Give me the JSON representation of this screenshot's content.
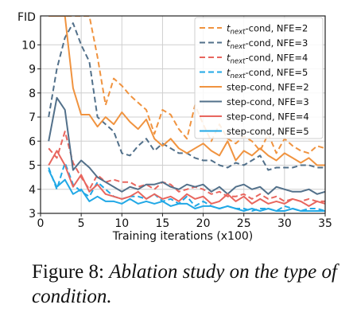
{
  "caption": {
    "label": "Figure 8:",
    "text": "Ablation study on the type of condition."
  },
  "chart_data": {
    "type": "line",
    "ylabel": "FID",
    "xlabel": "Training iterations (x100)",
    "xlim": [
      0,
      35
    ],
    "ylim": [
      3,
      11.2
    ],
    "x_ticks": [
      0,
      5,
      10,
      15,
      20,
      25,
      30,
      35
    ],
    "y_ticks": [
      3,
      4,
      5,
      6,
      7,
      8,
      9,
      10
    ],
    "grid": true,
    "legend_position": "top-right",
    "x": [
      1,
      2,
      3,
      4,
      5,
      6,
      7,
      8,
      9,
      10,
      11,
      12,
      13,
      14,
      15,
      16,
      17,
      18,
      19,
      20,
      21,
      22,
      23,
      24,
      25,
      26,
      27,
      28,
      29,
      30,
      31,
      32,
      33,
      34,
      35
    ],
    "series": [
      {
        "name": "t_next-cond, NFE=2",
        "legend_main": "t",
        "legend_sub": "next",
        "legend_rest": "-cond, NFE=2",
        "color": "#f0933f",
        "dash": true,
        "values": [
          11.2,
          11.2,
          11.2,
          11.2,
          11.2,
          11.2,
          9.5,
          7.5,
          8.6,
          8.3,
          7.9,
          7.6,
          7.3,
          6.3,
          7.3,
          7.1,
          6.5,
          6.1,
          7.5,
          6.7,
          6.0,
          6.7,
          6.1,
          5.9,
          6.2,
          6.0,
          5.6,
          6.3,
          5.5,
          6.1,
          5.8,
          5.6,
          5.5,
          5.8,
          5.7
        ]
      },
      {
        "name": "t_next-cond, NFE=3",
        "legend_main": "t",
        "legend_sub": "next",
        "legend_rest": "-cond, NFE=3",
        "color": "#52708a",
        "dash": true,
        "values": [
          7.0,
          9.0,
          10.3,
          10.9,
          10.0,
          9.3,
          7.0,
          6.7,
          6.4,
          5.5,
          5.4,
          5.8,
          6.1,
          5.6,
          5.9,
          5.7,
          5.5,
          5.5,
          5.3,
          5.2,
          5.2,
          5.0,
          4.9,
          5.1,
          5.0,
          5.2,
          5.4,
          4.8,
          4.9,
          4.9,
          4.9,
          5.0,
          5.0,
          4.9,
          4.9
        ]
      },
      {
        "name": "t_next-cond, NFE=4",
        "legend_main": "t",
        "legend_sub": "next",
        "legend_rest": "-cond, NFE=4",
        "color": "#e8665e",
        "dash": true,
        "values": [
          5.7,
          5.3,
          6.4,
          5.1,
          4.5,
          4.0,
          4.6,
          4.3,
          4.4,
          4.3,
          4.3,
          4.1,
          4.2,
          4.0,
          4.3,
          4.2,
          3.9,
          4.0,
          4.1,
          4.0,
          3.8,
          3.9,
          3.7,
          3.7,
          3.8,
          3.6,
          3.8,
          3.6,
          3.7,
          3.5,
          3.6,
          3.5,
          3.6,
          3.5,
          3.5
        ]
      },
      {
        "name": "t_next-cond, NFE=5",
        "legend_main": "t",
        "legend_sub": "next",
        "legend_rest": "-cond, NFE=5",
        "color": "#21a8e6",
        "dash": true,
        "values": [
          4.9,
          4.0,
          5.1,
          4.2,
          3.9,
          3.7,
          4.3,
          4.0,
          3.7,
          3.6,
          3.7,
          3.7,
          3.6,
          3.8,
          3.5,
          3.6,
          3.4,
          3.7,
          3.3,
          3.5,
          3.3,
          3.2,
          3.3,
          3.2,
          3.2,
          3.1,
          3.2,
          3.2,
          3.1,
          3.3,
          3.2,
          3.1,
          3.2,
          3.2,
          3.1
        ]
      },
      {
        "name": "step-cond, NFE=2",
        "color": "#f0933f",
        "dash": false,
        "values": [
          11.2,
          11.2,
          11.2,
          8.2,
          7.1,
          7.1,
          6.6,
          7.0,
          6.7,
          7.2,
          6.8,
          6.5,
          6.9,
          6.1,
          5.8,
          6.1,
          5.7,
          5.5,
          5.7,
          5.9,
          5.6,
          5.4,
          6.0,
          5.2,
          5.6,
          5.4,
          5.7,
          5.4,
          5.2,
          5.5,
          5.3,
          5.1,
          5.3,
          5.0,
          5.0
        ]
      },
      {
        "name": "step-cond, NFE=3",
        "color": "#52708a",
        "dash": false,
        "values": [
          6.0,
          7.8,
          7.3,
          4.8,
          5.2,
          4.9,
          4.5,
          4.3,
          4.1,
          3.9,
          4.1,
          4.0,
          4.2,
          4.2,
          4.3,
          4.1,
          4.0,
          4.2,
          4.1,
          4.2,
          3.9,
          4.1,
          3.8,
          4.1,
          4.2,
          4.0,
          4.1,
          3.8,
          4.1,
          4.0,
          3.9,
          3.9,
          4.0,
          3.8,
          3.9
        ]
      },
      {
        "name": "step-cond, NFE=4",
        "color": "#e8665e",
        "dash": false,
        "values": [
          5.0,
          5.6,
          5.0,
          4.1,
          4.6,
          3.9,
          4.2,
          3.8,
          3.7,
          3.6,
          3.7,
          3.9,
          3.6,
          3.8,
          3.6,
          3.7,
          3.5,
          3.8,
          3.6,
          3.7,
          3.4,
          3.5,
          3.8,
          3.5,
          3.7,
          3.4,
          3.6,
          3.4,
          3.5,
          3.4,
          3.6,
          3.5,
          3.3,
          3.5,
          3.4
        ]
      },
      {
        "name": "step-cond, NFE=5",
        "color": "#21a8e6",
        "dash": false,
        "values": [
          4.8,
          4.1,
          4.4,
          3.8,
          4.0,
          3.5,
          3.7,
          3.5,
          3.5,
          3.4,
          3.6,
          3.4,
          3.5,
          3.4,
          3.5,
          3.3,
          3.4,
          3.4,
          3.2,
          3.3,
          3.3,
          3.2,
          3.3,
          3.2,
          3.1,
          3.2,
          3.1,
          3.2,
          3.1,
          3.1,
          3.2,
          3.1,
          3.1,
          3.1,
          3.1
        ]
      }
    ]
  }
}
